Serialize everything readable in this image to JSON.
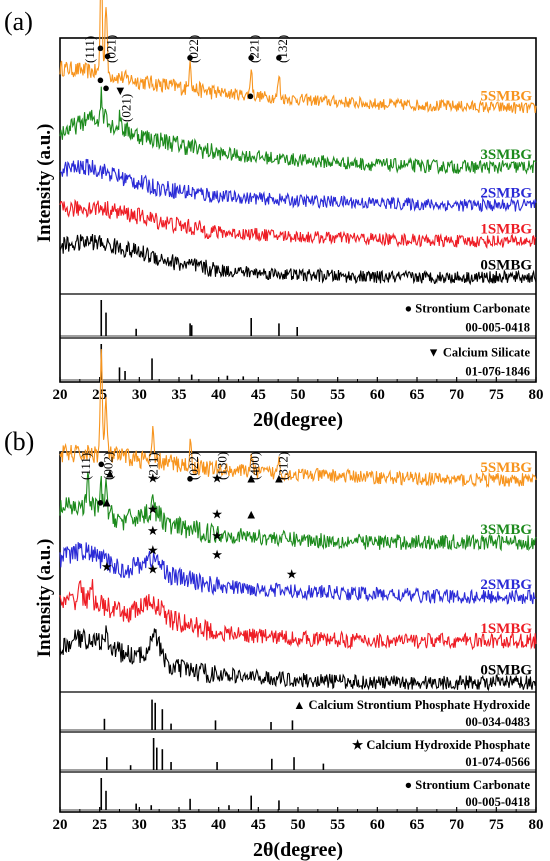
{
  "chart_data": [
    {
      "panel_label": "(a)",
      "type": "line",
      "xlabel": "2θ(degree)",
      "ylabel": "Intensity (a.u.)",
      "xlim": [
        20,
        80
      ],
      "xticks": [
        "20",
        "25",
        "30",
        "35",
        "40",
        "45",
        "50",
        "55",
        "60",
        "65",
        "70",
        "75",
        "80"
      ],
      "series": [
        {
          "name": "5SMBG",
          "color": "#f7941d",
          "noise": 1.4,
          "points": [
            [
              20,
              5.0
            ],
            [
              25,
              4.9
            ],
            [
              30,
              4.7
            ],
            [
              40,
              4.45
            ],
            [
              50,
              4.3
            ],
            [
              60,
              4.2
            ],
            [
              70,
              4.15
            ],
            [
              80,
              4.1
            ]
          ],
          "peaks": [
            [
              25.2,
              2.6
            ],
            [
              25.8,
              1.6
            ],
            [
              36.4,
              0.7
            ],
            [
              44.1,
              0.6
            ],
            [
              47.6,
              0.5
            ]
          ]
        },
        {
          "name": "3SMBG",
          "color": "#1c8a1c",
          "noise": 1.6,
          "points": [
            [
              20,
              3.55
            ],
            [
              24,
              3.9
            ],
            [
              27,
              3.7
            ],
            [
              30,
              3.5
            ],
            [
              40,
              3.1
            ],
            [
              50,
              2.95
            ],
            [
              60,
              2.85
            ],
            [
              70,
              2.8
            ],
            [
              80,
              2.8
            ]
          ],
          "peaks": [
            [
              25.2,
              0.6
            ],
            [
              25.8,
              0.4
            ],
            [
              27.6,
              0.3
            ]
          ]
        },
        {
          "name": "2SMBG",
          "color": "#2a2ad6",
          "noise": 1.5,
          "points": [
            [
              20,
              2.75
            ],
            [
              24,
              2.8
            ],
            [
              28,
              2.55
            ],
            [
              32,
              2.35
            ],
            [
              40,
              2.15
            ],
            [
              50,
              2.05
            ],
            [
              60,
              2.0
            ],
            [
              70,
              1.95
            ],
            [
              80,
              1.95
            ]
          ],
          "peaks": []
        },
        {
          "name": "1SMBG",
          "color": "#ee1c24",
          "noise": 1.5,
          "points": [
            [
              20,
              1.85
            ],
            [
              25,
              1.9
            ],
            [
              30,
              1.7
            ],
            [
              35,
              1.5
            ],
            [
              40,
              1.35
            ],
            [
              50,
              1.25
            ],
            [
              60,
              1.2
            ],
            [
              70,
              1.15
            ],
            [
              80,
              1.15
            ]
          ],
          "peaks": []
        },
        {
          "name": "0SMBG",
          "color": "#000000",
          "noise": 1.5,
          "points": [
            [
              20,
              1.05
            ],
            [
              24,
              1.15
            ],
            [
              30,
              0.9
            ],
            [
              35,
              0.65
            ],
            [
              40,
              0.5
            ],
            [
              50,
              0.4
            ],
            [
              60,
              0.35
            ],
            [
              70,
              0.35
            ],
            [
              80,
              0.35
            ]
          ],
          "peaks": []
        }
      ],
      "annotations": [
        {
          "text": "(111)",
          "x": 24.3,
          "kind": "label"
        },
        {
          "text": "(021)",
          "x": 27.0,
          "kind": "label"
        },
        {
          "text": "(022)",
          "x": 37.4,
          "kind": "label"
        },
        {
          "text": "(221)",
          "x": 45.0,
          "kind": "label"
        },
        {
          "text": "(132)",
          "x": 48.6,
          "kind": "label"
        },
        {
          "text": "(021)",
          "x": 28.9,
          "kind": "label2"
        }
      ],
      "markers": [
        {
          "symbol": "●",
          "x": 25.1,
          "level": 0
        },
        {
          "symbol": "●",
          "x": 26.0,
          "level": 0.5
        },
        {
          "symbol": "●",
          "x": 36.4,
          "level": 0.6
        },
        {
          "symbol": "●",
          "x": 44.1,
          "level": 0.6
        },
        {
          "symbol": "●",
          "x": 47.6,
          "level": 0.6
        },
        {
          "symbol": "●",
          "x": 25.1,
          "level": 2
        },
        {
          "symbol": "●",
          "x": 25.8,
          "level": 2.5
        },
        {
          "symbol": "▼",
          "x": 27.6,
          "level": 2.7
        },
        {
          "symbol": "●",
          "x": 44.0,
          "level": 3
        }
      ],
      "references": [
        {
          "name": "Strontium Carbonate",
          "code": "00-005-0418",
          "symbol": "●",
          "sticks": [
            [
              25.2,
              1.0
            ],
            [
              25.8,
              0.65
            ],
            [
              29.6,
              0.2
            ],
            [
              36.4,
              0.35
            ],
            [
              36.6,
              0.3
            ],
            [
              44.1,
              0.5
            ],
            [
              47.6,
              0.35
            ],
            [
              49.9,
              0.25
            ]
          ]
        },
        {
          "name": "Calcium Silicate",
          "code": "01-076-1846",
          "symbol": "▼",
          "sticks": [
            [
              25.2,
              1.0
            ],
            [
              27.5,
              0.35
            ],
            [
              28.2,
              0.25
            ],
            [
              31.6,
              0.6
            ],
            [
              36.6,
              0.15
            ],
            [
              41.1,
              0.12
            ],
            [
              43.1,
              0.1
            ]
          ]
        }
      ]
    },
    {
      "panel_label": "(b)",
      "type": "line",
      "xlabel": "2θ(degree)",
      "ylabel": "Intensity (a.u.)",
      "xlim": [
        20,
        80
      ],
      "xticks": [
        "20",
        "25",
        "30",
        "35",
        "40",
        "45",
        "50",
        "55",
        "60",
        "65",
        "70",
        "75",
        "80"
      ],
      "series": [
        {
          "name": "5SMBG",
          "color": "#f7941d",
          "noise": 1.4,
          "points": [
            [
              20,
              4.6
            ],
            [
              25,
              4.6
            ],
            [
              30,
              4.5
            ],
            [
              35,
              4.4
            ],
            [
              40,
              4.3
            ],
            [
              50,
              4.2
            ],
            [
              60,
              4.15
            ],
            [
              70,
              4.1
            ],
            [
              80,
              4.1
            ]
          ],
          "peaks": [
            [
              25.2,
              2.0
            ],
            [
              25.8,
              1.1
            ],
            [
              31.7,
              0.5
            ],
            [
              36.4,
              0.4
            ],
            [
              44.1,
              0.35
            ],
            [
              47.6,
              0.3
            ]
          ]
        },
        {
          "name": "3SMBG",
          "color": "#1c8a1c",
          "noise": 1.6,
          "points": [
            [
              20,
              3.55
            ],
            [
              24,
              3.6
            ],
            [
              28,
              3.3
            ],
            [
              31.8,
              3.5
            ],
            [
              34,
              3.2
            ],
            [
              40,
              3.05
            ],
            [
              50,
              2.95
            ],
            [
              60,
              2.9
            ],
            [
              70,
              2.9
            ],
            [
              80,
              2.9
            ]
          ],
          "peaks": [
            [
              23.5,
              0.6
            ],
            [
              25.2,
              0.5
            ],
            [
              25.8,
              0.6
            ],
            [
              31.7,
              0.35
            ]
          ]
        },
        {
          "name": "2SMBG",
          "color": "#2a2ad6",
          "noise": 1.5,
          "points": [
            [
              20,
              2.6
            ],
            [
              23,
              2.75
            ],
            [
              28,
              2.35
            ],
            [
              31.8,
              2.6
            ],
            [
              34,
              2.25
            ],
            [
              40,
              2.05
            ],
            [
              50,
              1.95
            ],
            [
              60,
              1.9
            ],
            [
              70,
              1.85
            ],
            [
              80,
              1.85
            ]
          ],
          "peaks": []
        },
        {
          "name": "1SMBG",
          "color": "#ee1c24",
          "noise": 1.6,
          "points": [
            [
              20,
              1.7
            ],
            [
              23,
              1.85
            ],
            [
              28,
              1.5
            ],
            [
              31.8,
              1.75
            ],
            [
              34,
              1.4
            ],
            [
              40,
              1.15
            ],
            [
              50,
              1.05
            ],
            [
              60,
              1.0
            ],
            [
              70,
              1.0
            ],
            [
              80,
              1.0
            ]
          ],
          "peaks": [
            [
              22.5,
              0.4
            ],
            [
              24.0,
              0.3
            ]
          ]
        },
        {
          "name": "0SMBG",
          "color": "#000000",
          "noise": 1.5,
          "points": [
            [
              20,
              0.8
            ],
            [
              22,
              1.05
            ],
            [
              25,
              1.0
            ],
            [
              28,
              0.75
            ],
            [
              30.5,
              0.7
            ],
            [
              31.8,
              1.2
            ],
            [
              33.5,
              0.5
            ],
            [
              40,
              0.35
            ],
            [
              50,
              0.25
            ],
            [
              60,
              0.2
            ],
            [
              70,
              0.2
            ],
            [
              80,
              0.2
            ]
          ],
          "peaks": [
            [
              25.9,
              0.25
            ]
          ]
        }
      ],
      "annotations": [
        {
          "text": "(111)",
          "x": 23.8,
          "kind": "label"
        },
        {
          "text": "(002)",
          "x": 26.6,
          "kind": "label"
        },
        {
          "text": "(211)",
          "x": 32.3,
          "kind": "label"
        },
        {
          "text": "(022)",
          "x": 37.4,
          "kind": "label"
        },
        {
          "text": "(130)",
          "x": 41.0,
          "kind": "label"
        },
        {
          "text": "(400)",
          "x": 45.1,
          "kind": "label"
        },
        {
          "text": "(312)",
          "x": 48.7,
          "kind": "label"
        }
      ],
      "markers": [
        {
          "symbol": "●",
          "x": 25.2,
          "level": 0
        },
        {
          "symbol": "▲",
          "x": 26.3,
          "level": 0.4
        },
        {
          "symbol": "★",
          "x": 31.7,
          "level": 0.6
        },
        {
          "symbol": "●",
          "x": 36.4,
          "level": 0.6
        },
        {
          "symbol": "★",
          "x": 39.8,
          "level": 0.6
        },
        {
          "symbol": "▲",
          "x": 44.1,
          "level": 0.6
        },
        {
          "symbol": "▲",
          "x": 47.6,
          "level": 0.6
        },
        {
          "symbol": "●",
          "x": 25.1,
          "level": 1.6
        },
        {
          "symbol": "▲",
          "x": 25.9,
          "level": 1.6
        },
        {
          "symbol": "★",
          "x": 31.7,
          "level": 1.9
        },
        {
          "symbol": "★",
          "x": 39.8,
          "level": 2.1
        },
        {
          "symbol": "▲",
          "x": 44.1,
          "level": 2.1
        },
        {
          "symbol": "★",
          "x": 31.7,
          "level": 2.8
        },
        {
          "symbol": "★",
          "x": 39.8,
          "level": 3.0
        },
        {
          "symbol": "★",
          "x": 31.7,
          "level": 3.6
        },
        {
          "symbol": "★",
          "x": 39.8,
          "level": 3.8
        },
        {
          "symbol": "★",
          "x": 25.9,
          "level": 4.3
        },
        {
          "symbol": "★",
          "x": 31.7,
          "level": 4.4
        },
        {
          "symbol": "★",
          "x": 49.2,
          "level": 4.6
        }
      ],
      "references": [
        {
          "name": "Calcium Strontium Phosphate Hydroxide",
          "code": "00-034-0483",
          "symbol": "▲",
          "sticks": [
            [
              25.6,
              0.35
            ],
            [
              31.6,
              0.95
            ],
            [
              32.0,
              0.85
            ],
            [
              32.9,
              0.65
            ],
            [
              34.0,
              0.2
            ],
            [
              39.6,
              0.3
            ],
            [
              46.6,
              0.25
            ],
            [
              49.3,
              0.3
            ]
          ]
        },
        {
          "name": "Calcium Hydroxide Phosphate",
          "code": "01-074-0566",
          "symbol": "★",
          "sticks": [
            [
              25.9,
              0.4
            ],
            [
              28.9,
              0.15
            ],
            [
              31.8,
              1.0
            ],
            [
              32.2,
              0.7
            ],
            [
              32.9,
              0.65
            ],
            [
              34.0,
              0.25
            ],
            [
              39.8,
              0.25
            ],
            [
              46.7,
              0.35
            ],
            [
              49.5,
              0.4
            ],
            [
              53.2,
              0.2
            ]
          ]
        },
        {
          "name": "Strontium Carbonate",
          "code": "00-005-0418",
          "symbol": "●",
          "sticks": [
            [
              25.2,
              1.0
            ],
            [
              25.8,
              0.6
            ],
            [
              29.6,
              0.2
            ],
            [
              31.5,
              0.15
            ],
            [
              36.4,
              0.35
            ],
            [
              41.3,
              0.15
            ],
            [
              44.1,
              0.45
            ],
            [
              47.6,
              0.3
            ]
          ]
        }
      ]
    }
  ]
}
